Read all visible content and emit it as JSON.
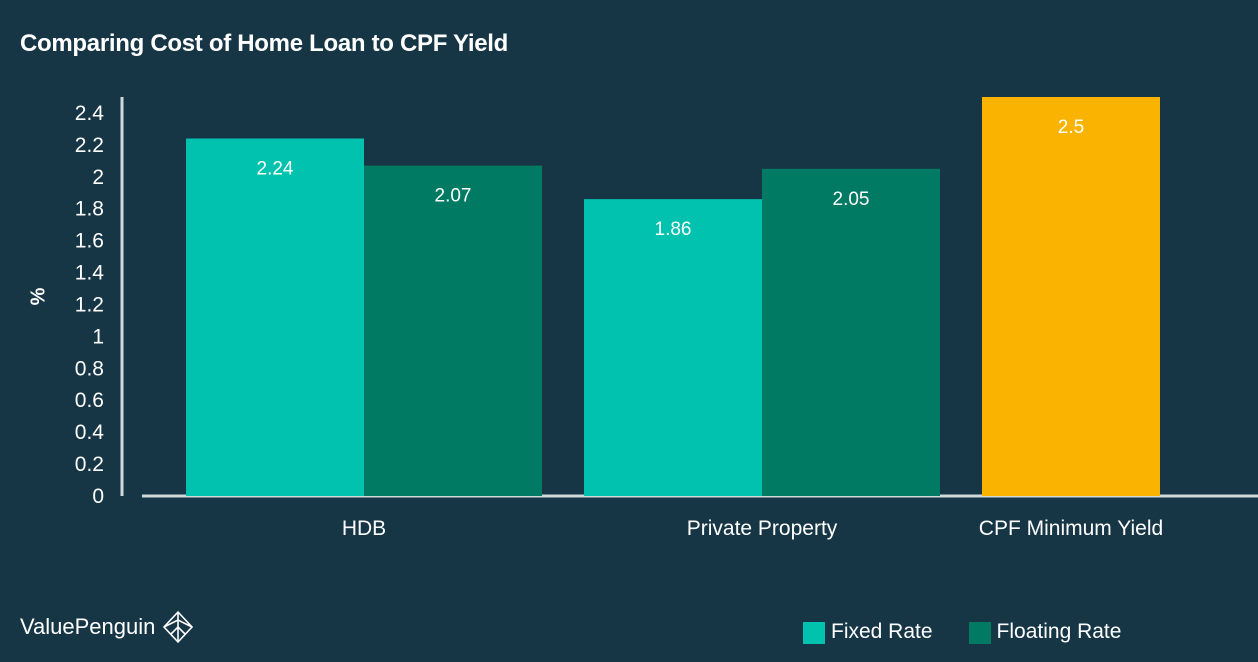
{
  "chart_data": {
    "type": "bar",
    "title": "Comparing Cost of Home Loan to CPF Yield",
    "xlabel": "",
    "ylabel": "%",
    "ylim": [
      0,
      2.5
    ],
    "yticks": [
      "0",
      "0.2",
      "0.4",
      "0.6",
      "0.8",
      "1",
      "1.2",
      "1.4",
      "1.6",
      "1.8",
      "2",
      "2.2",
      "2.4"
    ],
    "categories": [
      "HDB",
      "Private Property",
      "CPF Minimum Yield"
    ],
    "series": [
      {
        "name": "Fixed Rate",
        "color": "#00c2ae",
        "values": [
          2.24,
          1.86,
          null
        ]
      },
      {
        "name": "Floating Rate",
        "color": "#007a63",
        "values": [
          2.07,
          2.05,
          null
        ]
      },
      {
        "name": "",
        "color": "#f9b300",
        "values": [
          null,
          null,
          2.5
        ]
      }
    ],
    "data_labels": [
      "2.24",
      "1.86",
      "2.07",
      "2.05",
      "2.5"
    ],
    "legend": {
      "position": "bottom-right",
      "items": [
        "Fixed Rate",
        "Floating Rate"
      ]
    },
    "grid": false
  },
  "brand": {
    "name": "ValuePenguin",
    "icon": "penguin-logo-icon"
  }
}
